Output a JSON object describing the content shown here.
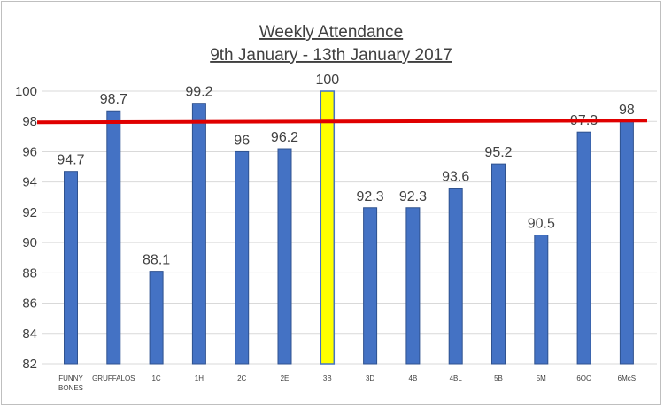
{
  "chart_data": {
    "type": "bar",
    "title": "Weekly Attendance",
    "subtitle": "9th January - 13th January 2017",
    "xlabel": "",
    "ylabel": "",
    "categories": [
      [
        "FUNNY",
        "BONES"
      ],
      [
        "GRUFFALOS"
      ],
      [
        "1C"
      ],
      [
        "1H"
      ],
      [
        "2C"
      ],
      [
        "2E"
      ],
      [
        "3B"
      ],
      [
        "3D"
      ],
      [
        "4B"
      ],
      [
        "4BL"
      ],
      [
        "5B"
      ],
      [
        "5M"
      ],
      [
        "6OC"
      ],
      [
        "6McS"
      ]
    ],
    "values": [
      94.7,
      98.7,
      88.1,
      99.2,
      96,
      96.2,
      100,
      92.3,
      92.3,
      93.6,
      95.2,
      90.5,
      97.3,
      98
    ],
    "data_labels": [
      "94.7",
      "98.7",
      "88.1",
      "99.2",
      "96",
      "96.2",
      "100",
      "92.3",
      "92.3",
      "93.6",
      "95.2",
      "90.5",
      "97.3",
      "98"
    ],
    "highlight_index": 6,
    "target_line": 98,
    "ylim": [
      82,
      100
    ],
    "yticks": [
      82,
      84,
      86,
      88,
      90,
      92,
      94,
      96,
      98,
      100
    ],
    "grid": true,
    "legend": "none",
    "colors": {
      "bar": "#4472c4",
      "bar_edge": "#2f528f",
      "highlight": "#ffff00",
      "highlight_edge": "#4472c4",
      "target_line": "#e00000",
      "grid": "#d9d9d9",
      "text": "#404040"
    }
  }
}
